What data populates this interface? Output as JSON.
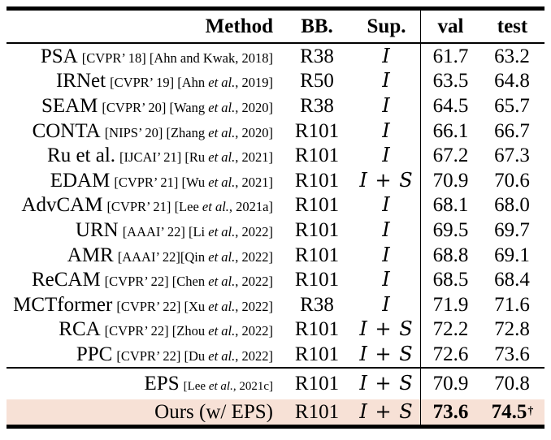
{
  "table": {
    "headers": {
      "method": "Method",
      "bb": "BB.",
      "sup": "Sup.",
      "val": "val",
      "test": "test"
    },
    "highlight_color": "#f7e1d6",
    "rows": [
      {
        "name": "PSA",
        "venue": "[CVPR’ 18]",
        "cite_pre": " [Ahn and Kwak, 2018]",
        "etal": "",
        "cite_post": "",
        "bb": "R38",
        "sup": "I",
        "val": "61.7",
        "test": "63.2",
        "test_suffix": "",
        "group": 1,
        "highlight": false,
        "bold": false,
        "tall": false,
        "cite_small": false
      },
      {
        "name": "IRNet",
        "venue": "[CVPR’ 19]",
        "cite_pre": " [Ahn ",
        "etal": "et al.",
        "cite_post": ", 2019]",
        "bb": "R50",
        "sup": "I",
        "val": "63.5",
        "test": "64.8",
        "test_suffix": "",
        "group": 1,
        "highlight": false,
        "bold": false,
        "tall": false,
        "cite_small": false
      },
      {
        "name": "SEAM",
        "venue": "[CVPR’ 20]",
        "cite_pre": " [Wang ",
        "etal": "et al.",
        "cite_post": ", 2020]",
        "bb": "R38",
        "sup": "I",
        "val": "64.5",
        "test": "65.7",
        "test_suffix": "",
        "group": 1,
        "highlight": false,
        "bold": false,
        "tall": false,
        "cite_small": false
      },
      {
        "name": "CONTA",
        "venue": "[NIPS’ 20]",
        "cite_pre": " [Zhang ",
        "etal": "et al.",
        "cite_post": ", 2020]",
        "bb": "R101",
        "sup": "I",
        "val": "66.1",
        "test": "66.7",
        "test_suffix": "",
        "group": 1,
        "highlight": false,
        "bold": false,
        "tall": false,
        "cite_small": false
      },
      {
        "name": "Ru et al.",
        "venue": "[IJCAI’ 21]",
        "cite_pre": " [Ru ",
        "etal": "et al.",
        "cite_post": ", 2021]",
        "bb": "R101",
        "sup": "I",
        "val": "67.2",
        "test": "67.3",
        "test_suffix": "",
        "group": 1,
        "highlight": false,
        "bold": false,
        "tall": false,
        "cite_small": false
      },
      {
        "name": "EDAM",
        "venue": "[CVPR’ 21]",
        "cite_pre": " [Wu ",
        "etal": "et al.",
        "cite_post": ", 2021]",
        "bb": "R101",
        "sup": "I + S",
        "val": "70.9",
        "test": "70.6",
        "test_suffix": "",
        "group": 1,
        "highlight": false,
        "bold": false,
        "tall": false,
        "cite_small": false
      },
      {
        "name": "AdvCAM",
        "venue": "[CVPR’ 21]",
        "cite_pre": " [Lee ",
        "etal": "et al.",
        "cite_post": ", 2021a]",
        "bb": "R101",
        "sup": "I",
        "val": "68.1",
        "test": "68.0",
        "test_suffix": "",
        "group": 1,
        "highlight": false,
        "bold": false,
        "tall": false,
        "cite_small": false
      },
      {
        "name": "URN",
        "venue": "[AAAI’ 22]",
        "cite_pre": " [Li ",
        "etal": "et al.",
        "cite_post": ", 2022]",
        "bb": "R101",
        "sup": "I",
        "val": "69.5",
        "test": "69.7",
        "test_suffix": "",
        "group": 1,
        "highlight": false,
        "bold": false,
        "tall": false,
        "cite_small": false
      },
      {
        "name": "AMR",
        "venue": "[AAAI’ 22]",
        "cite_pre": "[Qin ",
        "etal": "et al.",
        "cite_post": ", 2022]",
        "bb": "R101",
        "sup": "I",
        "val": "68.8",
        "test": "69.1",
        "test_suffix": "",
        "group": 1,
        "highlight": false,
        "bold": false,
        "tall": false,
        "cite_small": false
      },
      {
        "name": "ReCAM",
        "venue": "[CVPR’ 22]",
        "cite_pre": " [Chen ",
        "etal": "et al.",
        "cite_post": ", 2022]",
        "bb": "R101",
        "sup": "I",
        "val": "68.5",
        "test": "68.4",
        "test_suffix": "",
        "group": 1,
        "highlight": false,
        "bold": false,
        "tall": false,
        "cite_small": false
      },
      {
        "name": "MCTformer",
        "venue": "[CVPR’ 22]",
        "cite_pre": " [Xu ",
        "etal": "et al.",
        "cite_post": ", 2022]",
        "bb": "R38",
        "sup": "I",
        "val": "71.9",
        "test": "71.6",
        "test_suffix": "",
        "group": 1,
        "highlight": false,
        "bold": false,
        "tall": false,
        "cite_small": false
      },
      {
        "name": "RCA",
        "venue": "[CVPR’ 22]",
        "cite_pre": " [Zhou ",
        "etal": "et al.",
        "cite_post": ", 2022]",
        "bb": "R101",
        "sup": "I + S",
        "val": "72.2",
        "test": "72.8",
        "test_suffix": "",
        "group": 1,
        "highlight": false,
        "bold": false,
        "tall": false,
        "cite_small": false
      },
      {
        "name": "PPC",
        "venue": "[CVPR’ 22]",
        "cite_pre": " [Du ",
        "etal": "et al.",
        "cite_post": ", 2022]",
        "bb": "R101",
        "sup": "I + S",
        "val": "72.6",
        "test": "73.6",
        "test_suffix": "",
        "group": 1,
        "highlight": false,
        "bold": false,
        "tall": false,
        "cite_small": false
      },
      {
        "name": "EPS",
        "venue": "",
        "cite_pre": "[Lee ",
        "etal": "et al.",
        "cite_post": ", 2021c]",
        "bb": "R101",
        "sup": "I + S",
        "val": "70.9",
        "test": "70.8",
        "test_suffix": "",
        "group": 2,
        "highlight": false,
        "bold": false,
        "tall": true,
        "cite_small": true
      },
      {
        "name": "Ours (w/ EPS)",
        "venue": "",
        "cite_pre": "",
        "etal": "",
        "cite_post": "",
        "bb": "R101",
        "sup": "I + S",
        "val": "73.6",
        "test": "74.5",
        "test_suffix": "†",
        "group": 2,
        "highlight": true,
        "bold": true,
        "tall": false,
        "cite_small": false
      }
    ]
  }
}
